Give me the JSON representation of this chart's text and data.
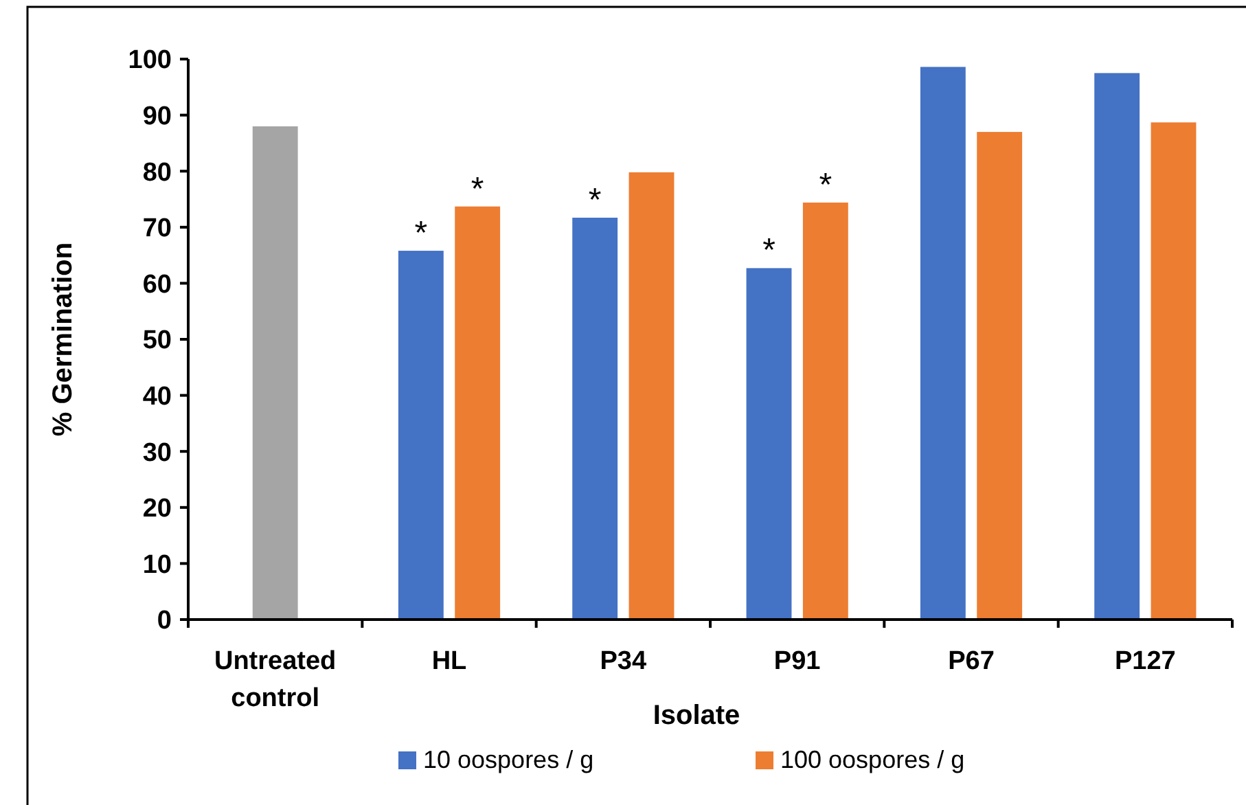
{
  "chart_data": {
    "type": "bar",
    "xlabel": "Isolate",
    "ylabel": "% Germination",
    "categories": [
      "Untreated control",
      "HL",
      "P34",
      "P91",
      "P67",
      "P127"
    ],
    "series": [
      {
        "color": "#a5a5a5",
        "values": [
          88.0,
          null,
          null,
          null,
          null,
          null
        ]
      },
      {
        "name": "10 oospores / g",
        "color": "#4472c4",
        "values": [
          null,
          65.8,
          71.7,
          62.7,
          98.6,
          97.5
        ]
      },
      {
        "name": "100 oospores / g",
        "color": "#ed7d31",
        "values": [
          null,
          73.7,
          79.8,
          74.4,
          87.0,
          88.7
        ]
      }
    ],
    "ylim": [
      0,
      100
    ],
    "yticks": [
      0,
      10,
      20,
      30,
      40,
      50,
      60,
      70,
      80,
      90,
      100
    ],
    "grid": false,
    "legend": "bottom",
    "annotations": [
      {
        "text": "*",
        "x": "HL",
        "y": 65.8
      },
      {
        "text": "*",
        "x": "HL",
        "y": 73.7
      },
      {
        "text": "*",
        "x": "P34",
        "y": 71.7
      },
      {
        "text": "*",
        "x": "P91",
        "y": 62.7
      },
      {
        "text": "*",
        "x": "P91",
        "y": 74.4
      }
    ]
  }
}
